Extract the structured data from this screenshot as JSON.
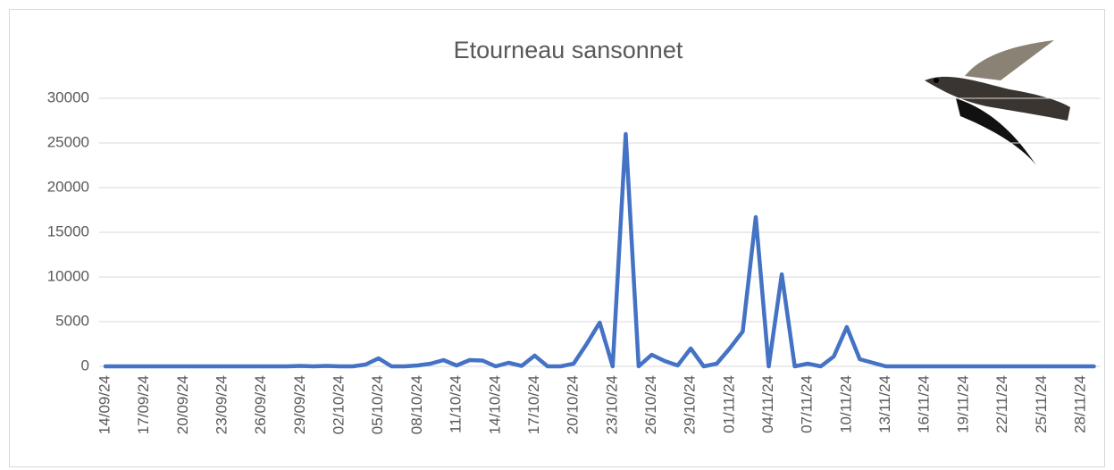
{
  "chart_data": {
    "type": "line",
    "title": "Etourneau sansonnet",
    "categories": [
      "14/09/24",
      null,
      null,
      "17/09/24",
      null,
      null,
      "20/09/24",
      null,
      null,
      "23/09/24",
      null,
      null,
      "26/09/24",
      null,
      null,
      "29/09/24",
      null,
      null,
      "02/10/24",
      null,
      null,
      "05/10/24",
      null,
      null,
      "08/10/24",
      null,
      null,
      "11/10/24",
      null,
      null,
      "14/10/24",
      null,
      null,
      "17/10/24",
      null,
      null,
      "20/10/24",
      null,
      null,
      "23/10/24",
      null,
      null,
      "26/10/24",
      null,
      null,
      "29/10/24",
      null,
      null,
      "01/11/24",
      null,
      null,
      "04/11/24",
      null,
      null,
      "07/11/24",
      null,
      null,
      "10/11/24",
      null,
      null,
      "13/11/24",
      null,
      null,
      "16/11/24",
      null,
      null,
      "19/11/24",
      null,
      null,
      "22/11/24",
      null,
      null,
      "25/11/24",
      null,
      null,
      "28/11/24",
      null
    ],
    "values": [
      0,
      0,
      0,
      0,
      0,
      0,
      0,
      0,
      0,
      0,
      0,
      0,
      0,
      0,
      0,
      50,
      0,
      50,
      0,
      0,
      200,
      900,
      0,
      0,
      100,
      300,
      700,
      100,
      700,
      650,
      0,
      400,
      50,
      1200,
      0,
      0,
      300,
      2500,
      4900,
      0,
      26000,
      0,
      1300,
      600,
      100,
      2000,
      0,
      300,
      2000,
      3900,
      16700,
      0,
      10300,
      0,
      300,
      0,
      1100,
      4400,
      800,
      400,
      0,
      0,
      0,
      0,
      0,
      0,
      0,
      0,
      0,
      0,
      0,
      0,
      0,
      0,
      0,
      0,
      0
    ],
    "color": "#4472c4",
    "ylim": [
      0,
      30000
    ],
    "yticks": [
      0,
      5000,
      10000,
      15000,
      20000,
      25000,
      30000
    ],
    "grid": true
  }
}
